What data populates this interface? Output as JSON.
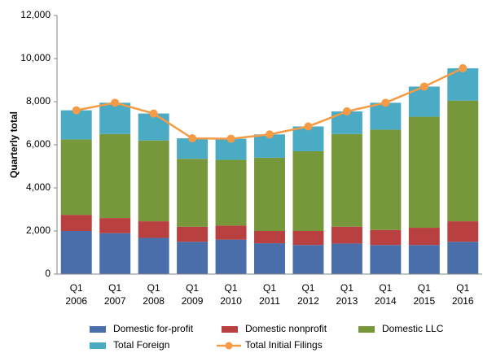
{
  "chart_data": {
    "type": "bar",
    "stacked": true,
    "y_label": "Quarterly total",
    "categories": [
      [
        "Q1",
        "2006"
      ],
      [
        "Q1",
        "2007"
      ],
      [
        "Q1",
        "2008"
      ],
      [
        "Q1",
        "2009"
      ],
      [
        "Q1",
        "2010"
      ],
      [
        "Q1",
        "2011"
      ],
      [
        "Q1",
        "2012"
      ],
      [
        "Q1",
        "2013"
      ],
      [
        "Q1",
        "2014"
      ],
      [
        "Q1",
        "2015"
      ],
      [
        "Q1",
        "2016"
      ]
    ],
    "series": [
      {
        "name": "Domestic for-profit",
        "color": "#4a6ea9",
        "values": [
          2000,
          1900,
          1680,
          1500,
          1600,
          1430,
          1350,
          1420,
          1350,
          1350,
          1500
        ]
      },
      {
        "name": "Domestic nonprofit",
        "color": "#b94040",
        "values": [
          750,
          700,
          770,
          700,
          650,
          570,
          650,
          780,
          700,
          800,
          950
        ]
      },
      {
        "name": "Domestic LLC",
        "color": "#77983a",
        "values": [
          3500,
          3900,
          3750,
          3150,
          3050,
          3400,
          3700,
          4300,
          4650,
          5150,
          5600
        ]
      },
      {
        "name": "Total Foreign",
        "color": "#4babc5",
        "values": [
          1350,
          1450,
          1250,
          950,
          980,
          1080,
          1150,
          1050,
          1250,
          1400,
          1500
        ]
      },
      {
        "name": "Total Initial Filings",
        "type": "line",
        "color": "#f59a45",
        "values": [
          7600,
          7950,
          7450,
          6300,
          6280,
          6480,
          6850,
          7550,
          7950,
          8700,
          9550
        ]
      }
    ],
    "ylim": [
      0,
      12000
    ],
    "yticks": [
      0,
      {
        "value": 2000,
        "label": "2,000"
      },
      {
        "value": 4000,
        "label": "4,000"
      },
      {
        "value": 6000,
        "label": "6,000"
      },
      {
        "value": 8000,
        "label": "8,000"
      },
      {
        "value": 10000,
        "label": "10,000"
      },
      {
        "value": 12000,
        "label": "12,000"
      }
    ],
    "grid": false,
    "legend": "bottom"
  }
}
